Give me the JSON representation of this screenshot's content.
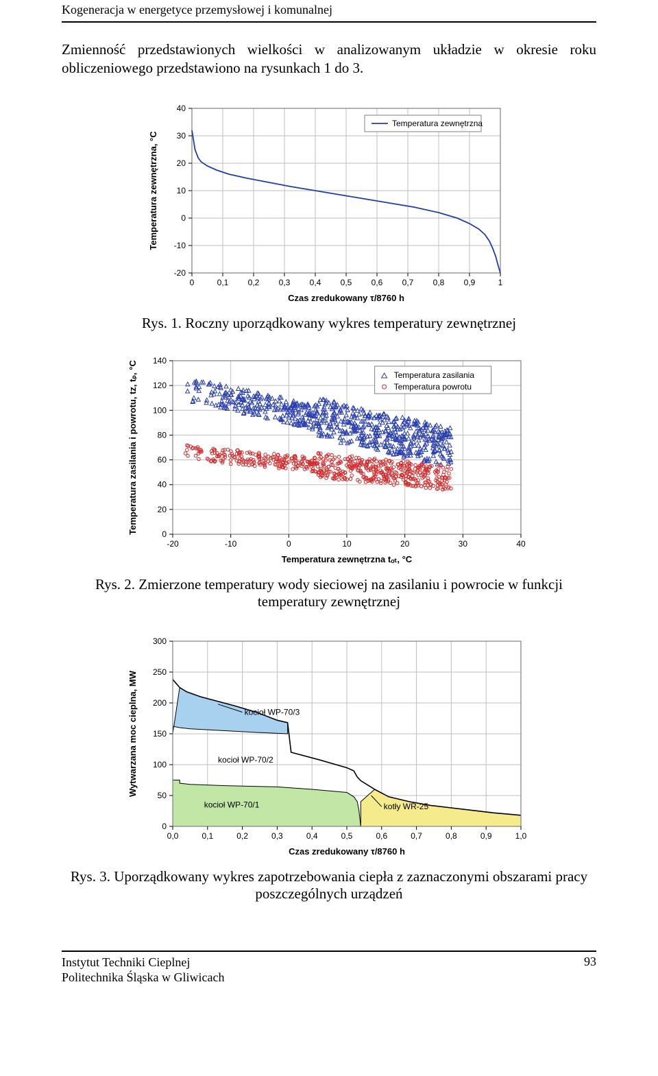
{
  "header": {
    "title": "Kogeneracja w energetyce przemysłowej i komunalnej"
  },
  "paragraph": "Zmienność przedstawionych wielkości w analizowanym układzie w okresie roku obliczeniowego przedstawiono na rysunkach 1 do 3.",
  "fig1": {
    "type": "line",
    "caption": "Rys. 1. Roczny uporządkowany wykres temperatury zewnętrznej",
    "legend": "Temperatura zewnętrzna",
    "x_title": "Czas zredukowany τ/8760 h",
    "y_title": "Temperatura zewnętrzna, °C",
    "xlim": [
      0,
      1
    ],
    "ylim": [
      -20,
      40
    ],
    "xticks": [
      0,
      0.1,
      0.2,
      0.3,
      0.4,
      0.5,
      0.6,
      0.7,
      0.8,
      0.9,
      1
    ],
    "xtick_labels": [
      "0",
      "0,1",
      "0,2",
      "0,3",
      "0,4",
      "0,5",
      "0,6",
      "0,7",
      "0,8",
      "0,9",
      "1"
    ],
    "yticks": [
      -20,
      -10,
      0,
      10,
      20,
      30,
      40
    ],
    "ytick_labels": [
      "-20",
      "-10",
      "0",
      "10",
      "20",
      "30",
      "40"
    ],
    "line_color": "#1f3fa6",
    "grid_color": "#bfbfbf",
    "border_color": "#808080",
    "background_color": "#ffffff",
    "series_xy": [
      [
        0,
        32
      ],
      [
        0.01,
        25
      ],
      [
        0.02,
        22
      ],
      [
        0.03,
        20.5
      ],
      [
        0.05,
        19
      ],
      [
        0.08,
        17.5
      ],
      [
        0.12,
        16
      ],
      [
        0.18,
        14.5
      ],
      [
        0.25,
        13
      ],
      [
        0.32,
        11.5
      ],
      [
        0.4,
        10
      ],
      [
        0.48,
        8.5
      ],
      [
        0.56,
        7
      ],
      [
        0.64,
        5.5
      ],
      [
        0.72,
        4
      ],
      [
        0.8,
        2
      ],
      [
        0.86,
        0
      ],
      [
        0.9,
        -2
      ],
      [
        0.93,
        -4
      ],
      [
        0.95,
        -6
      ],
      [
        0.965,
        -8.5
      ],
      [
        0.975,
        -11
      ],
      [
        0.985,
        -14
      ],
      [
        0.992,
        -17
      ],
      [
        1.0,
        -20
      ]
    ]
  },
  "fig2": {
    "type": "scatter",
    "caption": "Rys. 2. Zmierzone temperatury wody sieciowej na zasilaniu i powrocie w funkcji temperatury zewnętrznej",
    "legend_a": "Temperatura zasilania",
    "legend_b": "Temperatura powrotu",
    "x_title": "Temperatura zewnętrzna tₒₜ, °C",
    "y_title": "Temperatura zasilania i powrotu, tz, tₚ, °C",
    "xlim": [
      -20,
      40
    ],
    "ylim": [
      0,
      140
    ],
    "xticks": [
      -20,
      -10,
      0,
      10,
      20,
      30,
      40
    ],
    "xtick_labels": [
      "-20",
      "-10",
      "0",
      "10",
      "20",
      "30",
      "40"
    ],
    "yticks": [
      0,
      20,
      40,
      60,
      80,
      100,
      120,
      140
    ],
    "ytick_labels": [
      "0",
      "20",
      "40",
      "60",
      "80",
      "100",
      "120",
      "140"
    ],
    "color_a": "#2a3fb0",
    "color_b": "#d62728",
    "grid_color": "#bfbfbf",
    "border_color": "#808080",
    "background_color": "#ffffff",
    "series_a_seed": 1234,
    "series_a_n": 700,
    "series_b_seed": 5678,
    "series_b_n": 600
  },
  "fig3": {
    "type": "area",
    "caption": "Rys. 3. Uporządkowany wykres zapotrzebowania ciepła z zaznaczonymi obszarami pracy poszczególnych urządzeń",
    "x_title": "Czas zredukowany τ/8760 h",
    "y_title": "Wytwarzana moc cieplna, MW",
    "xlim": [
      0,
      1
    ],
    "ylim": [
      0,
      300
    ],
    "xticks": [
      0,
      0.1,
      0.2,
      0.3,
      0.4,
      0.5,
      0.6,
      0.7,
      0.8,
      0.9,
      1.0
    ],
    "xtick_labels": [
      "0,0",
      "0,1",
      "0,2",
      "0,3",
      "0,4",
      "0,5",
      "0,6",
      "0,7",
      "0,8",
      "0,9",
      "1,0"
    ],
    "yticks": [
      0,
      50,
      100,
      150,
      200,
      250,
      300
    ],
    "ytick_labels": [
      "0",
      "50",
      "100",
      "150",
      "200",
      "250",
      "300"
    ],
    "grid_color": "#bfbfbf",
    "border_color": "#808080",
    "background_color": "#ffffff",
    "total_line_color": "#000000",
    "green_fill": "#c1e6a5",
    "blue_fill": "#a8d1f0",
    "yellow_fill": "#f6eb8c",
    "annotations": {
      "wp70_3": "kocioł WP-70/3",
      "wp70_2": "kocioł WP-70/2",
      "wp70_1": "kocioł WP-70/1",
      "wr25": "kotły WR-25"
    },
    "total_xy": [
      [
        0,
        238
      ],
      [
        0.02,
        225
      ],
      [
        0.04,
        218
      ],
      [
        0.08,
        210
      ],
      [
        0.12,
        204
      ],
      [
        0.18,
        195
      ],
      [
        0.24,
        185
      ],
      [
        0.3,
        172
      ],
      [
        0.33,
        168
      ],
      [
        0.34,
        120
      ],
      [
        0.42,
        108
      ],
      [
        0.5,
        95
      ],
      [
        0.52,
        90
      ],
      [
        0.53,
        80
      ],
      [
        0.54,
        74
      ],
      [
        0.58,
        60
      ],
      [
        0.62,
        48
      ],
      [
        0.68,
        40
      ],
      [
        0.74,
        34
      ],
      [
        0.8,
        30
      ],
      [
        0.86,
        26
      ],
      [
        0.92,
        22
      ],
      [
        1.0,
        18
      ]
    ],
    "green_poly": [
      [
        0,
        0
      ],
      [
        0,
        75
      ],
      [
        0.02,
        75
      ],
      [
        0.02,
        70
      ],
      [
        0.05,
        68
      ],
      [
        0.15,
        66
      ],
      [
        0.3,
        64
      ],
      [
        0.4,
        60
      ],
      [
        0.5,
        55
      ],
      [
        0.52,
        48
      ],
      [
        0.53,
        40
      ],
      [
        0.535,
        25
      ],
      [
        0.54,
        0
      ]
    ],
    "blue_poly": [
      [
        0,
        150
      ],
      [
        0.02,
        225
      ],
      [
        0.04,
        218
      ],
      [
        0.08,
        210
      ],
      [
        0.12,
        204
      ],
      [
        0.18,
        195
      ],
      [
        0.24,
        185
      ],
      [
        0.3,
        172
      ],
      [
        0.33,
        168
      ],
      [
        0.33,
        150
      ],
      [
        0.25,
        152
      ],
      [
        0.15,
        155
      ],
      [
        0.05,
        158
      ],
      [
        0.02,
        160
      ],
      [
        0,
        162
      ]
    ],
    "yellow_poly": [
      [
        0.54,
        0
      ],
      [
        0.54,
        40
      ],
      [
        0.58,
        60
      ],
      [
        0.62,
        48
      ],
      [
        0.68,
        40
      ],
      [
        0.74,
        34
      ],
      [
        0.8,
        30
      ],
      [
        0.86,
        26
      ],
      [
        0.92,
        22
      ],
      [
        1.0,
        18
      ],
      [
        1.0,
        0
      ]
    ]
  },
  "footer": {
    "line1": "Instytut Techniki Cieplnej",
    "line2": "Politechnika Śląska w Gliwicach",
    "page": "93"
  }
}
